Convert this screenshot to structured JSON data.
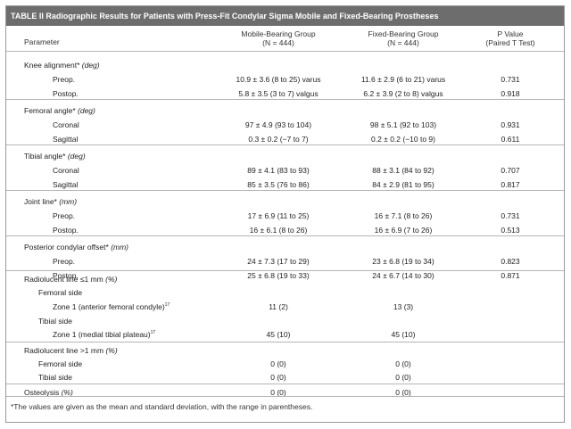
{
  "table": {
    "title_lead": "TABLE II",
    "title_text": "Radiographic Results for Patients with Press-Fit Condylar Sigma Mobile and Fixed-Bearing Prostheses",
    "headers": {
      "parameter": "Parameter",
      "mobile_line1": "Mobile-Bearing Group",
      "mobile_line2": "(N = 444)",
      "fixed_line1": "Fixed-Bearing Group",
      "fixed_line2": "(N = 444)",
      "p_line1": "P Value",
      "p_line2": "(Paired T Test)"
    },
    "rows": [
      {
        "label": "Knee alignment*",
        "unit": "(deg)",
        "mobile": "",
        "fixed": "",
        "p": ""
      },
      {
        "label": "Preop.",
        "unit": "",
        "mobile": "10.9 ± 3.6 (8 to 25) varus",
        "fixed": "11.6 ± 2.9 (6 to 21) varus",
        "p": "0.731"
      },
      {
        "label": "Postop.",
        "unit": "",
        "mobile": "5.8 ± 3.5 (3 to 7) valgus",
        "fixed": "6.2 ± 3.9 (2 to 8) valgus",
        "p": "0.918"
      },
      {
        "label": "Femoral angle*",
        "unit": "(deg)",
        "mobile": "",
        "fixed": "",
        "p": ""
      },
      {
        "label": "Coronal",
        "unit": "",
        "mobile": "97 ± 4.9 (93 to 104)",
        "fixed": "98 ± 5.1 (92 to 103)",
        "p": "0.931"
      },
      {
        "label": "Sagittal",
        "unit": "",
        "mobile": "0.3 ± 0.2 (−7 to 7)",
        "fixed": "0.2 ± 0.2 (−10 to 9)",
        "p": "0.611"
      },
      {
        "label": "Tibial angle*",
        "unit": "(deg)",
        "mobile": "",
        "fixed": "",
        "p": ""
      },
      {
        "label": "Coronal",
        "unit": "",
        "mobile": "89 ± 4.1 (83 to 93)",
        "fixed": "88 ± 3.1 (84 to 92)",
        "p": "0.707"
      },
      {
        "label": "Sagittal",
        "unit": "",
        "mobile": "85 ± 3.5 (76 to 86)",
        "fixed": "84 ± 2.9 (81 to 95)",
        "p": "0.817"
      },
      {
        "label": "Joint line*",
        "unit": "(mm)",
        "mobile": "",
        "fixed": "",
        "p": ""
      },
      {
        "label": "Preop.",
        "unit": "",
        "mobile": "17 ± 6.9 (11 to 25)",
        "fixed": "16 ± 7.1 (8 to 26)",
        "p": "0.731"
      },
      {
        "label": "Postop.",
        "unit": "",
        "mobile": "16 ± 6.1 (8 to 26)",
        "fixed": "16 ± 6.9 (7 to 26)",
        "p": "0.513"
      },
      {
        "label": "Posterior condylar offset*",
        "unit": "(mm)",
        "mobile": "",
        "fixed": "",
        "p": ""
      },
      {
        "label": "Preop.",
        "unit": "",
        "mobile": "24 ± 7.3 (17 to 29)",
        "fixed": "23 ± 6.8 (19 to 34)",
        "p": "0.823"
      },
      {
        "label": "Postop.",
        "unit": "",
        "mobile": "25 ± 6.8 (19 to 33)",
        "fixed": "24 ± 6.7 (14 to 30)",
        "p": "0.871"
      },
      {
        "label": "Radiolucent line ≤1 mm",
        "unit": "(%)",
        "mobile": "",
        "fixed": "",
        "p": ""
      },
      {
        "label": "Femoral side",
        "unit": "",
        "mobile": "",
        "fixed": "",
        "p": ""
      },
      {
        "label": "Zone 1 (anterior femoral condyle)",
        "sup": "17",
        "unit": "",
        "mobile": "11 (2)",
        "fixed": "13 (3)",
        "p": ""
      },
      {
        "label": "Tibial side",
        "unit": "",
        "mobile": "",
        "fixed": "",
        "p": ""
      },
      {
        "label": "Zone 1 (medial tibial plateau)",
        "sup": "17",
        "unit": "",
        "mobile": "45 (10)",
        "fixed": "45 (10)",
        "p": ""
      },
      {
        "label": "Radiolucent line >1 mm",
        "unit": "(%)",
        "mobile": "",
        "fixed": "",
        "p": ""
      },
      {
        "label": "Femoral side",
        "unit": "",
        "mobile": "0 (0)",
        "fixed": "0 (0)",
        "p": ""
      },
      {
        "label": "Tibial side",
        "unit": "",
        "mobile": "0 (0)",
        "fixed": "0 (0)",
        "p": ""
      },
      {
        "label": "Osteolysis",
        "unit": "(%)",
        "mobile": "0 (0)",
        "fixed": "0 (0)",
        "p": ""
      }
    ],
    "footnote": "*The values are given as the mean and standard deviation, with the range in parentheses."
  }
}
